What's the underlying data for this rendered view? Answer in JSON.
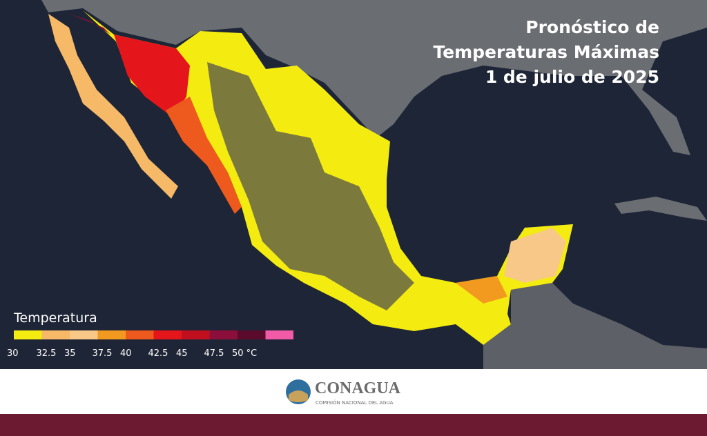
{
  "title": {
    "lines": [
      "Pronóstico de",
      "Temperaturas Máximas",
      "1 de julio de 2025"
    ]
  },
  "legend": {
    "title": "Temperatura",
    "ticks": [
      30,
      32.5,
      35,
      37.5,
      40,
      42.5,
      45,
      47.5,
      {
        "value": 50,
        "label": "50 °C"
      }
    ],
    "colors": [
      "#f4ec10",
      "#f6b968",
      "#f7c887",
      "#f29a1f",
      "#ee5a1d",
      "#e5161b",
      "#c01020",
      "#8b0f3a",
      "#5a0b2c",
      "#f05aa6"
    ]
  },
  "footer": {
    "logo_name": "CONAGUA",
    "logo_subtitle": "COMISIÓN NACIONAL DEL AGUA"
  }
}
